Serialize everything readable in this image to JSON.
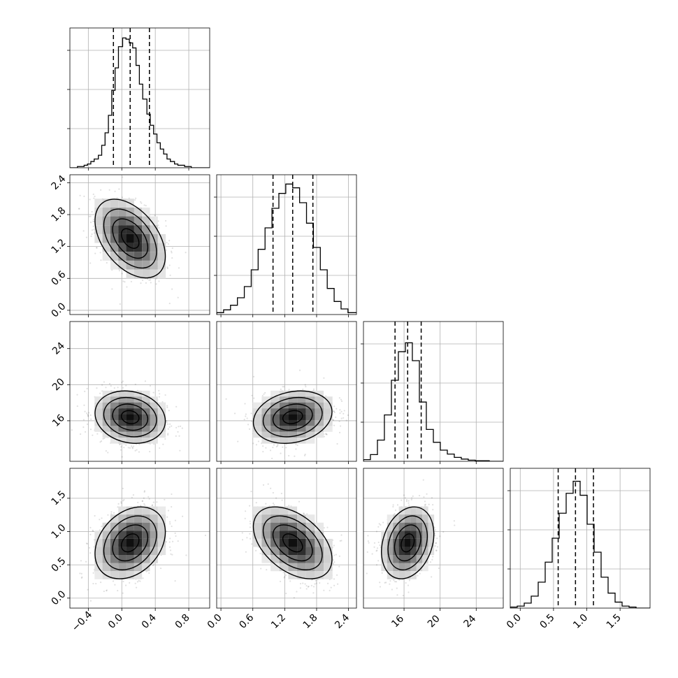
{
  "chart_data": {
    "type": "corner",
    "grid": true,
    "parameters": [
      {
        "range": [
          -0.62,
          1.05
        ],
        "ticks": [
          "−0.4",
          "0.0",
          "0.4",
          "0.8"
        ],
        "tick_values": [
          -0.4,
          0.0,
          0.4,
          0.8
        ],
        "quantiles": [
          -0.1,
          0.1,
          0.33
        ],
        "hist_edges": [
          -0.62,
          -0.57,
          -0.53,
          -0.49,
          -0.45,
          -0.41,
          -0.37,
          -0.33,
          -0.28,
          -0.24,
          -0.2,
          -0.16,
          -0.12,
          -0.08,
          -0.04,
          0.01,
          0.05,
          0.09,
          0.13,
          0.17,
          0.21,
          0.25,
          0.3,
          0.34,
          0.38,
          0.42,
          0.46,
          0.5,
          0.54,
          0.58,
          0.63,
          0.67,
          0.71,
          0.75,
          0.79,
          0.83,
          0.88,
          0.92,
          0.96,
          1.0,
          1.05
        ],
        "hist_counts": [
          0,
          0,
          1,
          1,
          2,
          3,
          5,
          7,
          10,
          18,
          28,
          42,
          62,
          80,
          97,
          104,
          103,
          100,
          96,
          82,
          67,
          55,
          43,
          34,
          27,
          20,
          15,
          11,
          7,
          5,
          3,
          2,
          2,
          1,
          1,
          0,
          0,
          0,
          0,
          0
        ],
        "hist_max": 112
      },
      {
        "range": [
          -0.08,
          2.55
        ],
        "ticks": [
          "0.0",
          "0.6",
          "1.2",
          "1.8",
          "2.4"
        ],
        "tick_values": [
          0.0,
          0.6,
          1.2,
          1.8,
          2.4
        ],
        "quantiles": [
          0.98,
          1.35,
          1.73
        ],
        "hist_edges": [
          -0.08,
          0.05,
          0.18,
          0.31,
          0.44,
          0.57,
          0.7,
          0.83,
          0.96,
          1.09,
          1.22,
          1.35,
          1.48,
          1.61,
          1.74,
          1.87,
          2.0,
          2.13,
          2.26,
          2.39,
          2.55
        ],
        "hist_counts": [
          2,
          5,
          10,
          18,
          30,
          48,
          70,
          93,
          114,
          130,
          140,
          136,
          120,
          98,
          72,
          48,
          28,
          14,
          6,
          2
        ],
        "hist_max": 150
      },
      {
        "range": [
          11.5,
          27.0
        ],
        "ticks": [
          "16",
          "20",
          "24"
        ],
        "tick_values": [
          16,
          20,
          24
        ],
        "quantiles": [
          15.0,
          16.4,
          17.9
        ],
        "hist_edges": [
          11.5,
          12.27,
          13.05,
          13.82,
          14.6,
          15.37,
          16.15,
          16.92,
          17.7,
          18.47,
          19.25,
          20.02,
          20.8,
          21.57,
          22.35,
          23.12,
          23.9,
          24.67,
          25.45,
          26.22,
          27.0
        ],
        "hist_counts": [
          3,
          12,
          38,
          83,
          145,
          196,
          212,
          180,
          106,
          57,
          34,
          20,
          13,
          7,
          4,
          2,
          1,
          1,
          0,
          0
        ],
        "hist_max": 250
      },
      {
        "range": [
          -0.15,
          1.95
        ],
        "ticks": [
          "0.0",
          "0.5",
          "1.0",
          "1.5"
        ],
        "tick_values": [
          0.0,
          0.5,
          1.0,
          1.5
        ],
        "quantiles": [
          0.57,
          0.83,
          1.1
        ],
        "hist_edges": [
          -0.15,
          -0.045,
          0.06,
          0.165,
          0.27,
          0.375,
          0.48,
          0.585,
          0.69,
          0.795,
          0.9,
          1.005,
          1.11,
          1.215,
          1.32,
          1.425,
          1.53,
          1.635,
          1.74,
          1.845,
          1.95
        ],
        "hist_counts": [
          1,
          2,
          5,
          12,
          26,
          46,
          70,
          95,
          115,
          127,
          113,
          84,
          56,
          31,
          15,
          6,
          2,
          1,
          0,
          0
        ],
        "hist_max": 140
      }
    ],
    "correlations": {
      "1-0": -0.45,
      "2-0": -0.15,
      "2-1": 0.2,
      "3-0": 0.3,
      "3-1": -0.45,
      "3-2": 0.25
    },
    "std": [
      0.21,
      0.37,
      1.45,
      0.27
    ],
    "center": [
      0.1,
      1.35,
      16.4,
      0.83
    ]
  }
}
